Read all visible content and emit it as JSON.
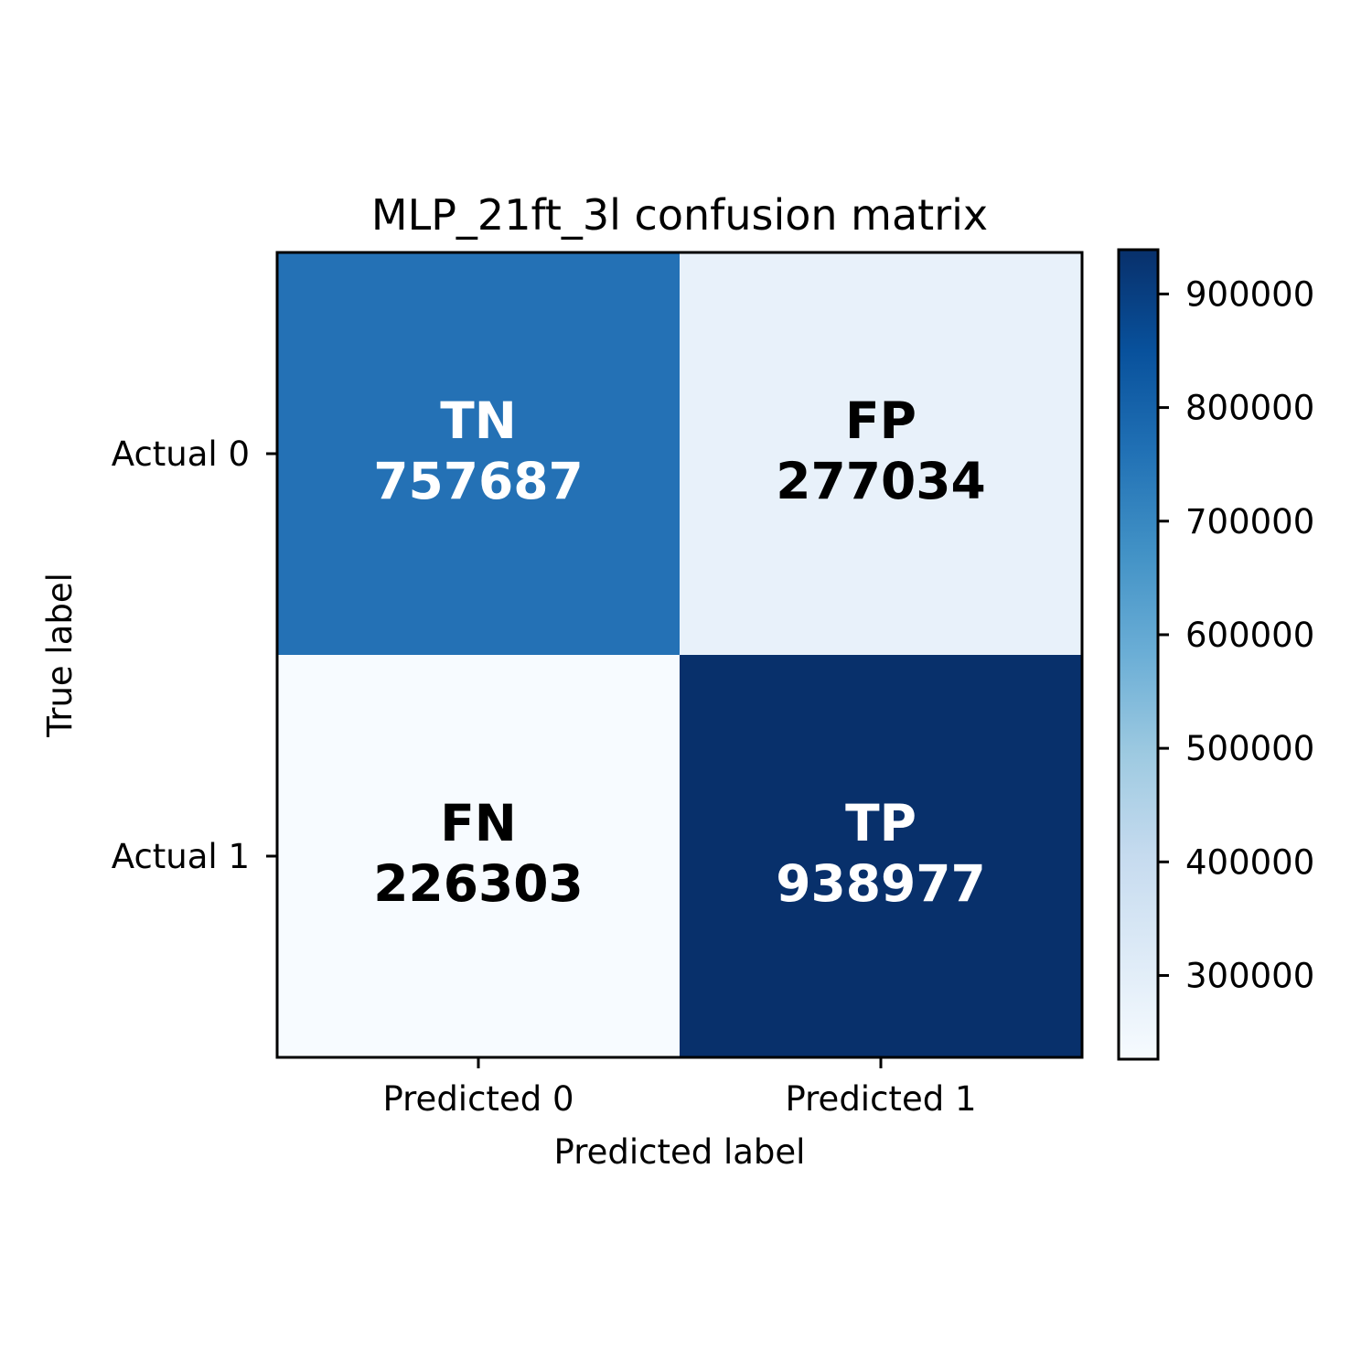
{
  "chart_data": {
    "type": "heatmap",
    "title": "MLP_21ft_3l confusion matrix",
    "xlabel": "Predicted label",
    "ylabel": "True label",
    "x_categories": [
      "Predicted 0",
      "Predicted 1"
    ],
    "y_categories": [
      "Actual 0",
      "Actual 1"
    ],
    "cells": [
      [
        {
          "label": "TN",
          "value": 757687
        },
        {
          "label": "FP",
          "value": 277034
        }
      ],
      [
        {
          "label": "FN",
          "value": 226303
        },
        {
          "label": "TP",
          "value": 938977
        }
      ]
    ],
    "colorbar": {
      "colormap": "Blues",
      "min": 226303,
      "max": 938977,
      "ticks": [
        300000,
        400000,
        500000,
        600000,
        700000,
        800000,
        900000
      ]
    },
    "cell_colors": [
      [
        "#2471b5",
        "#e8f1fa"
      ],
      [
        "#f7fbff",
        "#08306b"
      ]
    ],
    "text_colors": [
      [
        "#ffffff",
        "#000000"
      ],
      [
        "#000000",
        "#ffffff"
      ]
    ]
  }
}
